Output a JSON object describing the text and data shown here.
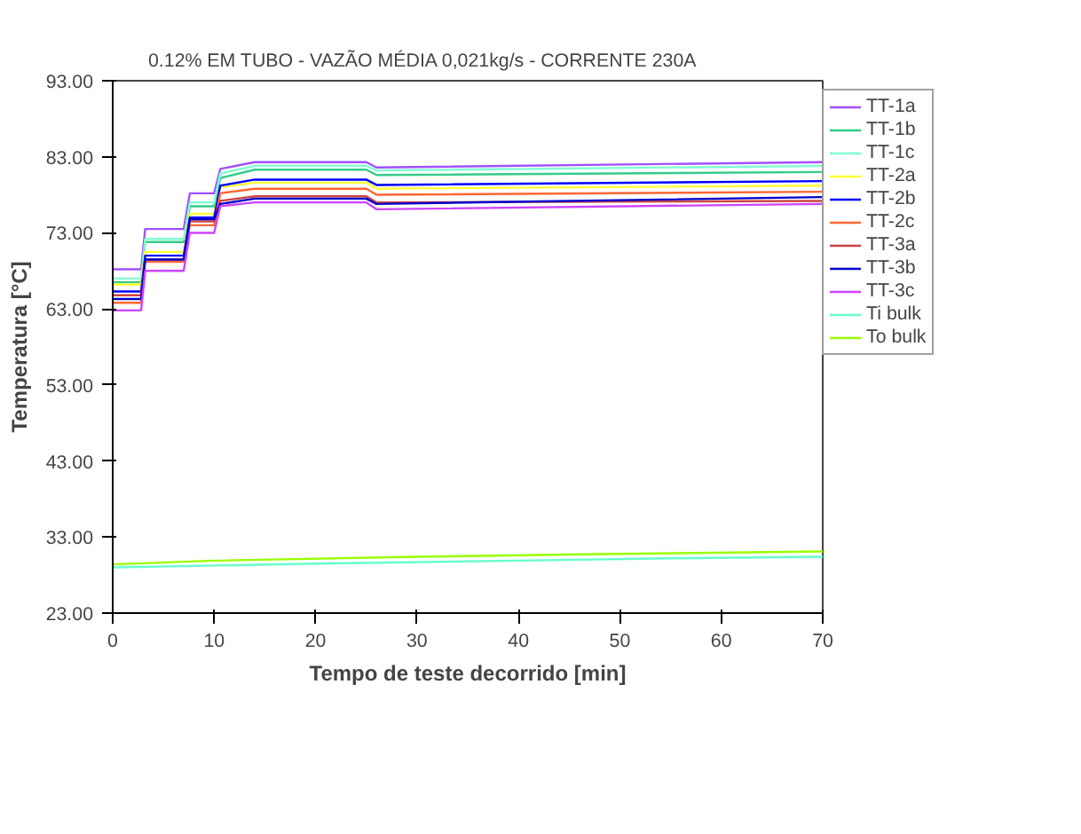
{
  "chart_data": {
    "type": "line",
    "title": "0.12%  EM  TUBO  - VAZÃO MÉDIA 0,021kg/s - CORRENTE 230A",
    "xlabel": "Tempo de teste decorrido [min]",
    "ylabel": "Temperatura [°C]",
    "x": [
      0,
      2.8,
      3.2,
      7.0,
      7.6,
      10.0,
      10.6,
      14,
      25,
      26,
      70
    ],
    "series": [
      {
        "name": "TT-1a",
        "color": "#a050ff",
        "values": [
          68.2,
          68.2,
          73.5,
          73.5,
          78.2,
          78.2,
          81.4,
          82.3,
          82.3,
          81.6,
          82.3
        ]
      },
      {
        "name": "TT-1b",
        "color": "#33cc88",
        "values": [
          66.5,
          66.5,
          71.8,
          71.8,
          76.5,
          76.5,
          80.2,
          81.3,
          81.3,
          80.6,
          81.0
        ]
      },
      {
        "name": "TT-1c",
        "color": "#80ffd0",
        "values": [
          67.0,
          67.0,
          72.2,
          72.2,
          77.0,
          77.0,
          80.8,
          81.8,
          81.8,
          81.2,
          81.8
        ]
      },
      {
        "name": "TT-2a",
        "color": "#ffff33",
        "values": [
          66.2,
          66.2,
          70.5,
          70.5,
          75.5,
          75.5,
          79.0,
          79.6,
          79.6,
          78.8,
          79.2
        ]
      },
      {
        "name": "TT-2b",
        "color": "#0000ff",
        "values": [
          65.3,
          65.3,
          70.0,
          70.0,
          75.0,
          75.0,
          79.2,
          80.0,
          80.0,
          79.3,
          79.8
        ]
      },
      {
        "name": "TT-2c",
        "color": "#ff6633",
        "values": [
          63.8,
          63.8,
          69.2,
          69.2,
          74.0,
          74.0,
          78.2,
          78.8,
          78.8,
          78.0,
          78.4
        ]
      },
      {
        "name": "TT-3a",
        "color": "#cc4444",
        "values": [
          64.8,
          64.8,
          69.5,
          69.5,
          74.5,
          74.5,
          77.2,
          77.8,
          77.8,
          77.0,
          77.2
        ]
      },
      {
        "name": "TT-3b",
        "color": "#0000cc",
        "values": [
          64.3,
          64.3,
          69.5,
          69.5,
          74.8,
          74.8,
          76.8,
          77.5,
          77.5,
          76.8,
          77.7
        ]
      },
      {
        "name": "TT-3c",
        "color": "#cc44ff",
        "values": [
          62.8,
          62.8,
          68.0,
          68.0,
          73.0,
          73.0,
          76.5,
          77.0,
          77.0,
          76.1,
          76.8
        ]
      },
      {
        "name": "Ti bulk",
        "color": "#66ffcc",
        "x": [
          0,
          20,
          40,
          55,
          70
        ],
        "values": [
          29.0,
          29.5,
          29.9,
          30.2,
          30.4
        ]
      },
      {
        "name": "To bulk",
        "color": "#99ff00",
        "x": [
          0,
          10,
          30,
          45,
          70
        ],
        "values": [
          29.4,
          29.9,
          30.4,
          30.7,
          31.1
        ]
      }
    ],
    "xlim": [
      0,
      70
    ],
    "xticks": [
      0,
      10,
      20,
      30,
      40,
      50,
      60,
      70
    ],
    "ylim": [
      23,
      93
    ],
    "yticks": [
      {
        "value": 23,
        "label": "23.00"
      },
      {
        "value": 33,
        "label": "33.00"
      },
      {
        "value": 43,
        "label": "43.00"
      },
      {
        "value": 53,
        "label": "53.00"
      },
      {
        "value": 63,
        "label": "63.00"
      },
      {
        "value": 73,
        "label": "73.00"
      },
      {
        "value": 83,
        "label": "83.00"
      },
      {
        "value": 93,
        "label": "93.00"
      }
    ],
    "grid": false,
    "legend": "right",
    "marker": "none",
    "line_style": "solid"
  }
}
